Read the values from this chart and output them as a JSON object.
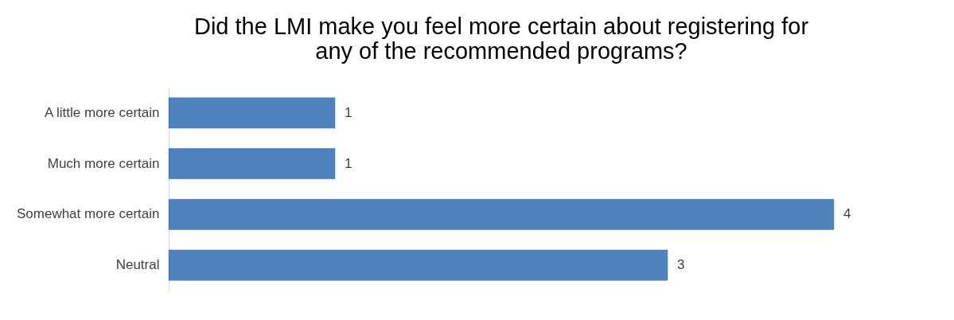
{
  "chart_data": {
    "type": "bar",
    "orientation": "horizontal",
    "title": "Did the LMI make you feel more certain about registering for any of the recommended programs?",
    "categories": [
      "A little more certain",
      "Much more certain",
      "Somewhat more certain",
      "Neutral"
    ],
    "values": [
      1,
      1,
      4,
      3
    ],
    "color": "#4f81bd",
    "data_labels": true
  }
}
